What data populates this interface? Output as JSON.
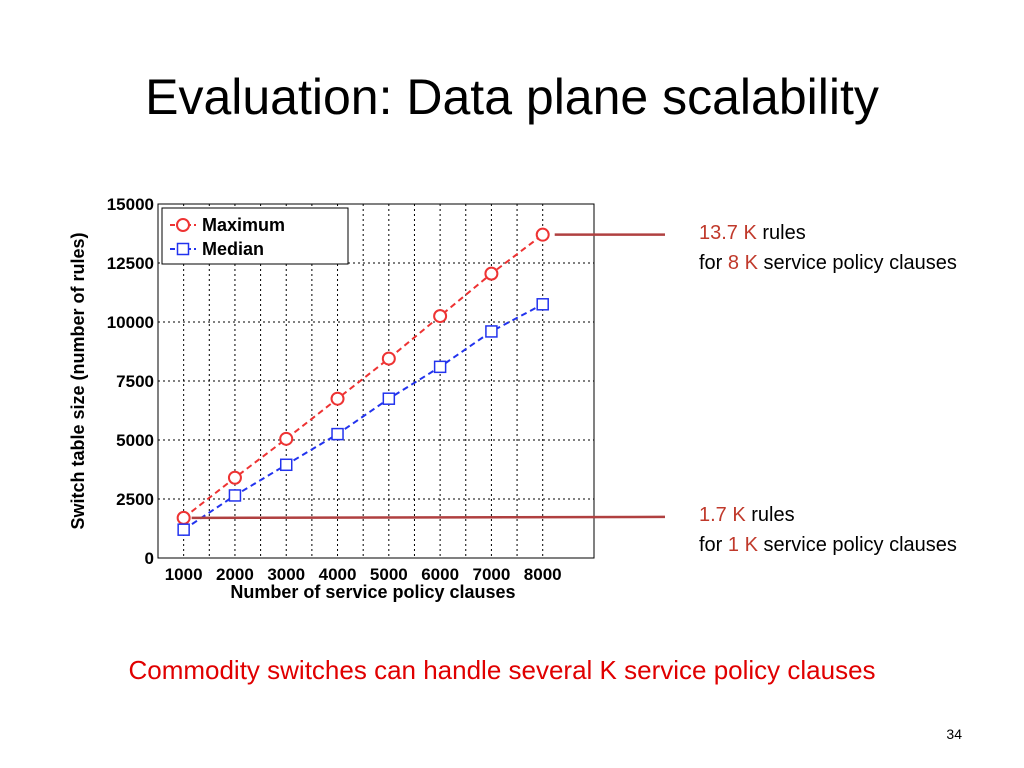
{
  "slide": {
    "title": "Evaluation: Data plane scalability",
    "footer": "Commodity switches can handle several K service policy clauses",
    "page_number": "34"
  },
  "annotations": {
    "top": {
      "value": "13.7 K",
      "mid": "rules",
      "prefix": "for",
      "value2": "8 K",
      "suffix": "service policy clauses"
    },
    "bottom": {
      "value": "1.7 K",
      "mid": "rules",
      "prefix": "for",
      "value2": "1 K",
      "suffix": "service policy clauses"
    }
  },
  "chart_data": {
    "type": "line",
    "xlabel": "Number of service policy clauses",
    "ylabel": "Switch table size (number of rules)",
    "x": [
      1000,
      2000,
      3000,
      4000,
      5000,
      6000,
      7000,
      8000
    ],
    "xlim": [
      500,
      9000
    ],
    "ylim": [
      0,
      15000
    ],
    "yticks": [
      0,
      2500,
      5000,
      7500,
      10000,
      12500,
      15000
    ],
    "xticks": [
      1000,
      2000,
      3000,
      4000,
      5000,
      6000,
      7000,
      8000
    ],
    "grid": true,
    "legend_position": "top-left",
    "series": [
      {
        "name": "Maximum",
        "marker": "circle",
        "color": "#ee3333",
        "values": [
          1700,
          3400,
          5050,
          6750,
          8450,
          10250,
          12050,
          13700
        ]
      },
      {
        "name": "Median",
        "marker": "square",
        "color": "#2233ee",
        "values": [
          1200,
          2650,
          3950,
          5250,
          6750,
          8100,
          9600,
          10750
        ]
      }
    ]
  },
  "colors": {
    "highlight": "#c0392b",
    "footer": "#e00000",
    "leader_line": "#b04040"
  }
}
